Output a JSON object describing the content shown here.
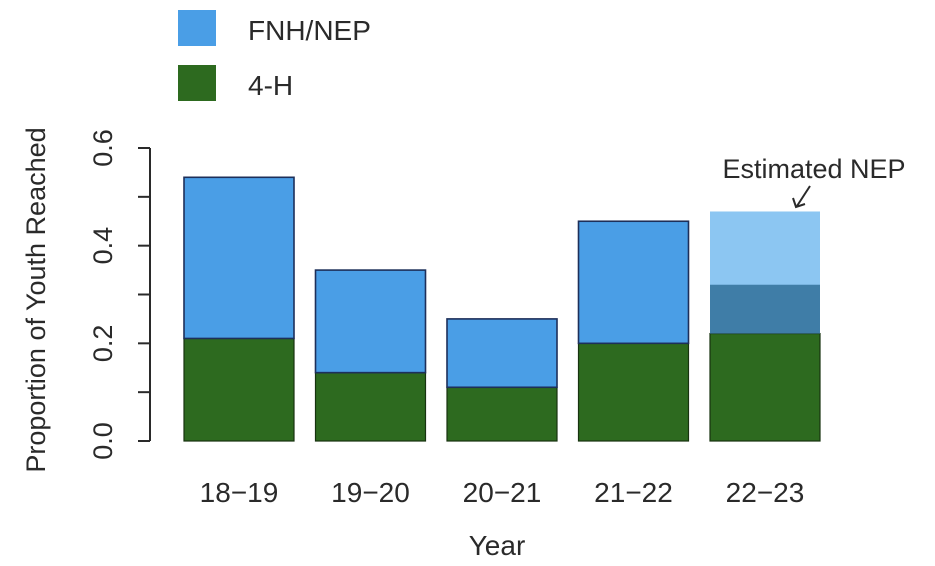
{
  "chart_data": {
    "type": "bar",
    "stacked": true,
    "title": "",
    "xlabel": "Year",
    "ylabel": "Proportion of Youth Reached",
    "ylim": [
      0,
      0.6
    ],
    "yticks": [
      "0.0",
      "0.2",
      "0.4",
      "0.6"
    ],
    "categories": [
      "18−19",
      "19−20",
      "20−21",
      "21−22",
      "22−23"
    ],
    "series": [
      {
        "name": "4-H",
        "color": "#2d6a1f",
        "values": [
          0.21,
          0.14,
          0.11,
          0.2,
          0.22
        ]
      },
      {
        "name": "FNH/NEP",
        "color": "#4a9ee6",
        "values": [
          0.33,
          0.21,
          0.14,
          0.25,
          0.1
        ]
      }
    ],
    "estimated": {
      "category": "22−23",
      "label": "Estimated NEP",
      "total": 0.47,
      "color": "#8cc6f2"
    },
    "legend": [
      {
        "label": "FNH/NEP",
        "color": "#4a9ee6"
      },
      {
        "label": "4-H",
        "color": "#2d6a1f"
      }
    ],
    "legend_position": "top-left",
    "grid": false
  }
}
